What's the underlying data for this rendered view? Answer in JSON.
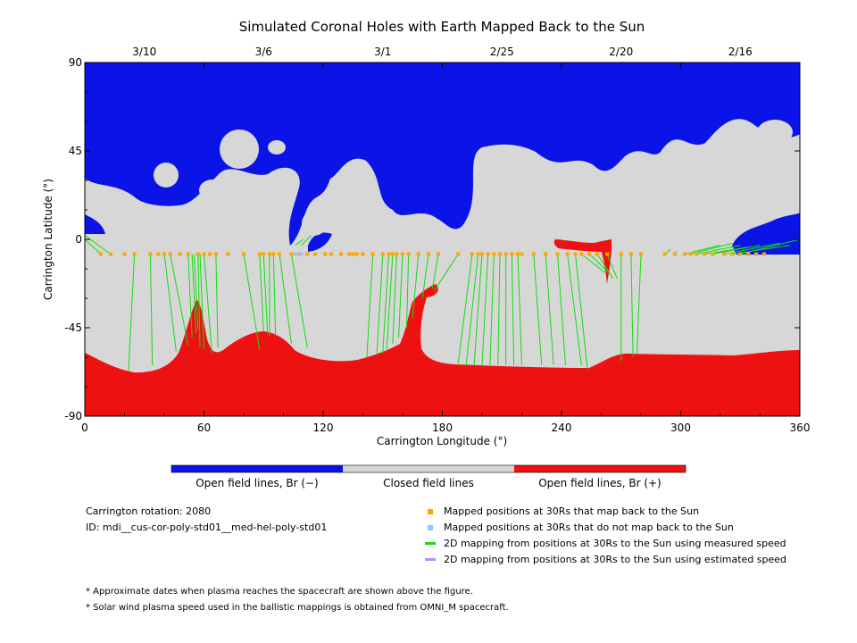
{
  "chart_data": {
    "type": "map",
    "title": "Simulated Coronal Holes with Earth Mapped Back to the Sun",
    "xlabel": "Carrington Longitude (°)",
    "ylabel": "Carrington Latitude (°)",
    "xlim": [
      0,
      360
    ],
    "ylim": [
      -90,
      90
    ],
    "x_ticks": [
      0,
      60,
      120,
      180,
      240,
      300,
      360
    ],
    "y_ticks": [
      90,
      45,
      0,
      -45,
      -90
    ],
    "top_axis": {
      "labels": [
        "3/10",
        "3/6",
        "3/1",
        "2/25",
        "2/20",
        "2/16"
      ],
      "longitudes": [
        30,
        90,
        150,
        210,
        270,
        330
      ]
    },
    "colors": {
      "open_negative": "#0a14e6",
      "closed": "#d7d7d7",
      "open_positive": "#ee1111",
      "mapped_positions": "#ffa500",
      "unmapped_positions": "#8cc8ff",
      "measured_speed": "#11dd11",
      "estimated_speed": "#b68cf5"
    },
    "colorbar": [
      "Open field lines, Br (−)",
      "Closed field lines",
      "Open field lines, Br (+)"
    ],
    "mapped_points_lon": [
      8,
      13,
      20,
      25,
      33,
      37,
      40,
      43,
      48,
      52,
      57,
      60,
      63,
      66,
      72,
      80,
      88,
      90,
      93,
      95,
      98,
      104,
      108,
      112,
      116,
      121,
      124,
      129,
      133,
      135,
      137,
      140,
      145,
      150,
      153,
      155,
      157,
      160,
      163,
      168,
      173,
      178,
      188,
      195,
      198,
      200,
      203,
      206,
      209,
      212,
      215,
      218,
      220,
      226,
      232,
      238,
      243,
      247,
      250,
      254,
      258,
      263,
      270,
      275,
      280,
      292,
      297,
      302,
      305,
      308,
      312,
      316,
      322,
      326,
      330,
      334,
      338,
      342
    ],
    "points_lat": -7.5,
    "unmapped_points_lon": [
      106,
      109
    ],
    "measured_lines": [
      [
        0,
        0,
        8,
        -7.5
      ],
      [
        0,
        2,
        13,
        -7.5
      ],
      [
        25,
        -7.5,
        22,
        -67
      ],
      [
        33,
        -7.5,
        34,
        -64
      ],
      [
        40,
        -7.5,
        46,
        -57
      ],
      [
        43,
        -7.5,
        52,
        -54
      ],
      [
        52,
        -7.5,
        54,
        -50
      ],
      [
        54,
        -7.5,
        56,
        -48
      ],
      [
        55,
        -7.5,
        57,
        -46
      ],
      [
        57,
        -7.5,
        58,
        -55
      ],
      [
        58,
        -7.5,
        60,
        -56
      ],
      [
        60,
        -7.5,
        64,
        -58
      ],
      [
        66,
        -7.5,
        67,
        -55
      ],
      [
        80,
        -7.5,
        88,
        -56
      ],
      [
        88,
        -7.5,
        90,
        -47
      ],
      [
        90,
        -7.5,
        92,
        -48
      ],
      [
        93,
        -7.5,
        93,
        -49
      ],
      [
        95,
        -7.5,
        96,
        -49
      ],
      [
        98,
        -7.5,
        104,
        -53
      ],
      [
        104,
        -7.5,
        112,
        -55
      ],
      [
        106,
        -3,
        110,
        0
      ],
      [
        109,
        -3,
        114,
        2
      ],
      [
        145,
        -7.5,
        142,
        -60
      ],
      [
        150,
        -7.5,
        147,
        -59
      ],
      [
        153,
        -7.5,
        150,
        -58
      ],
      [
        155,
        -7.5,
        152,
        -56
      ],
      [
        157,
        -7.5,
        155,
        -53
      ],
      [
        160,
        -7.5,
        158,
        -50
      ],
      [
        163,
        -7.5,
        162,
        -45
      ],
      [
        168,
        -7.5,
        165,
        -40
      ],
      [
        173,
        -7.5,
        170,
        -30
      ],
      [
        178,
        -7.5,
        175,
        -25
      ],
      [
        188,
        -7.5,
        176,
        -26
      ],
      [
        195,
        -7.5,
        188,
        -63
      ],
      [
        198,
        -7.5,
        192,
        -64
      ],
      [
        200,
        -7.5,
        196,
        -64
      ],
      [
        203,
        -7.5,
        200,
        -64
      ],
      [
        206,
        -7.5,
        204,
        -64
      ],
      [
        209,
        -7.5,
        208,
        -64
      ],
      [
        212,
        -7.5,
        212,
        -64
      ],
      [
        215,
        -7.5,
        216,
        -64
      ],
      [
        218,
        -7.5,
        220,
        -64
      ],
      [
        226,
        -7.5,
        230,
        -64
      ],
      [
        232,
        -7.5,
        236,
        -64
      ],
      [
        238,
        -7.5,
        242,
        -64
      ],
      [
        243,
        -7.5,
        250,
        -64
      ],
      [
        247,
        -7.5,
        253,
        -66
      ],
      [
        250,
        -7.5,
        262,
        -17
      ],
      [
        254,
        -7.5,
        265,
        -18
      ],
      [
        258,
        -7.5,
        266,
        -20
      ],
      [
        263,
        -7.5,
        268,
        -20
      ],
      [
        270,
        -7.5,
        270,
        -62
      ],
      [
        275,
        -7.5,
        276,
        -60
      ],
      [
        280,
        -7.5,
        278,
        -58
      ],
      [
        292,
        -7.5,
        295,
        -5
      ],
      [
        297,
        -7.5,
        298,
        -6
      ],
      [
        302,
        -7.5,
        320,
        -3
      ],
      [
        305,
        -7.5,
        326,
        -2
      ],
      [
        308,
        -7.5,
        330,
        -3
      ],
      [
        312,
        -7.5,
        334,
        -4
      ],
      [
        316,
        -7.5,
        340,
        -3
      ],
      [
        322,
        -7.5,
        350,
        -2
      ],
      [
        326,
        -7.5,
        355,
        -3
      ],
      [
        330,
        -7.5,
        360,
        0
      ]
    ]
  },
  "info": {
    "rotation": "Carrington rotation: 2080",
    "id": "ID: mdi__cus-cor-poly-std01__med-hel-poly-std01"
  },
  "legend": {
    "mapped": "Mapped positions at 30Rs that map back to the Sun",
    "unmapped": "Mapped positions at 30Rs that do not map back to the Sun",
    "measured": "2D mapping from positions at 30Rs to the Sun using measured speed",
    "estimated": "2D mapping from positions at 30Rs to the Sun using estimated speed"
  },
  "notes": {
    "note1": "* Approximate dates when plasma reaches the spacecraft are shown above the figure.",
    "note2": "* Solar wind plasma speed used in the ballistic mappings is obtained from OMNI_M spacecraft."
  }
}
